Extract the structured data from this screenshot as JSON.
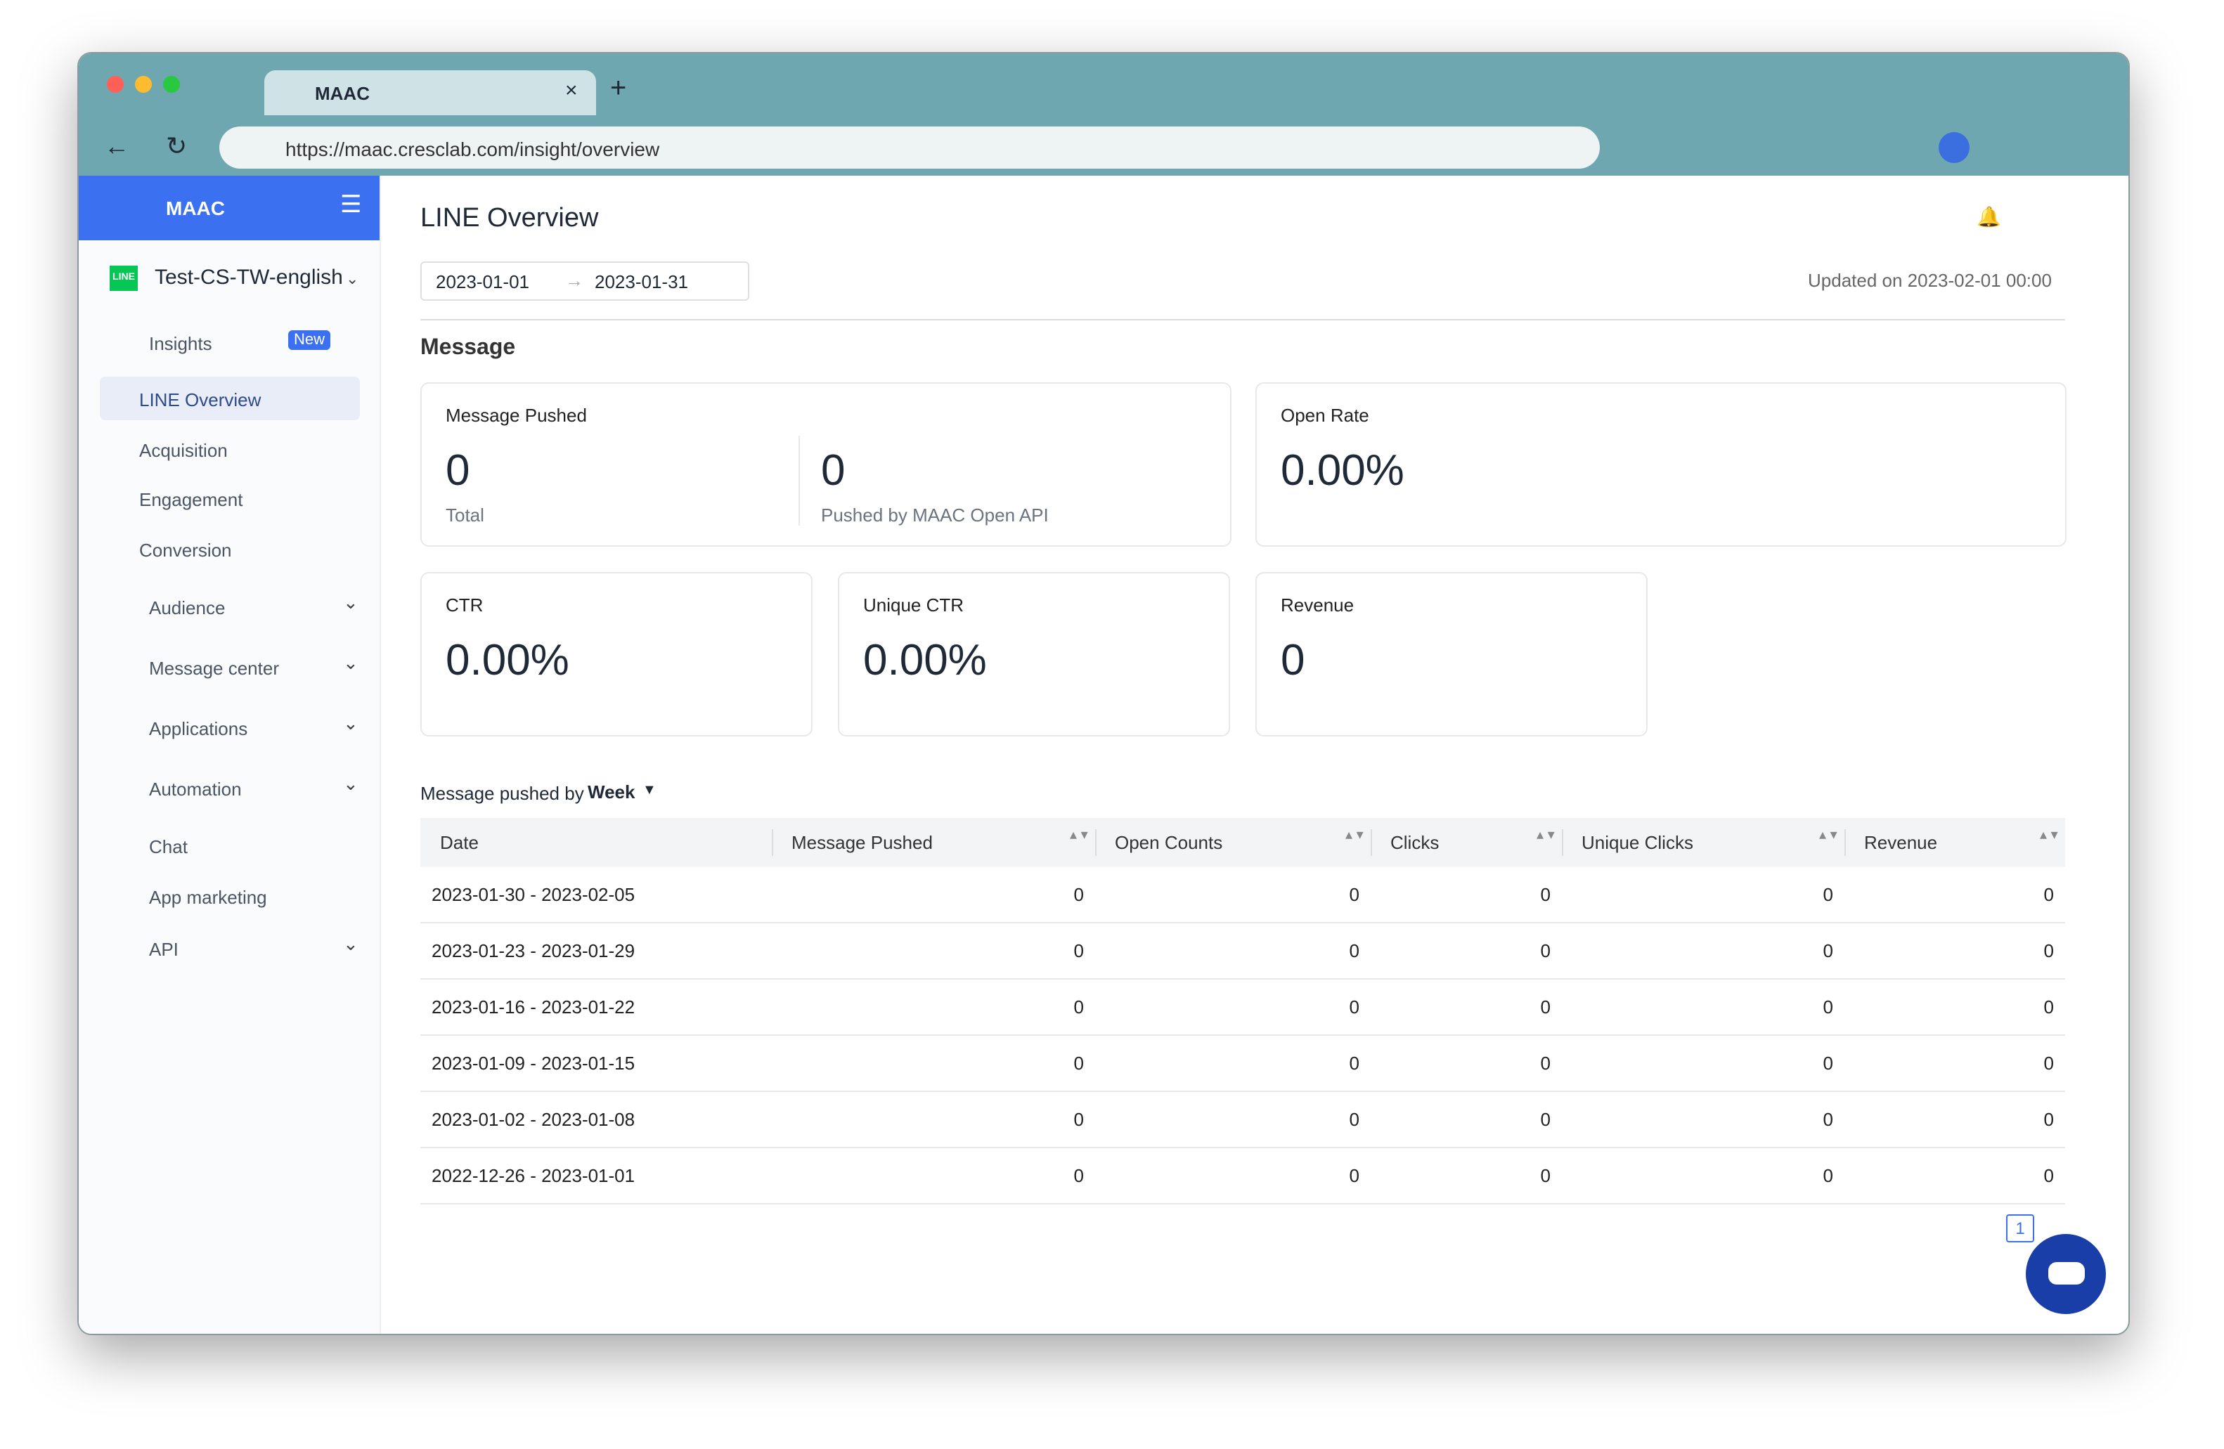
{
  "browser": {
    "tab_title": "MAAC",
    "url": "https://maac.cresclab.com/insight/overview"
  },
  "sidebar": {
    "brand": "MAAC",
    "account_badge": "LINE",
    "account": "Test-CS-TW-english",
    "insights": "Insights",
    "new_badge": "New",
    "subitems": [
      "LINE Overview",
      "Acquisition",
      "Engagement",
      "Conversion"
    ],
    "items": [
      "Audience",
      "Message center",
      "Applications",
      "Automation",
      "Chat",
      "App marketing",
      "API"
    ]
  },
  "header": {
    "title": "LINE Overview",
    "start_date": "2023-01-01",
    "end_date": "2023-01-31",
    "updated": "Updated on 2023-02-01 00:00"
  },
  "section": "Message",
  "cards": {
    "message_pushed": {
      "label": "Message Pushed",
      "total": "0",
      "total_label": "Total",
      "api": "0",
      "api_label": "Pushed by MAAC Open API"
    },
    "open_rate": {
      "label": "Open Rate",
      "value": "0.00%"
    },
    "ctr": {
      "label": "CTR",
      "value": "0.00%"
    },
    "unique_ctr": {
      "label": "Unique CTR",
      "value": "0.00%"
    },
    "revenue": {
      "label": "Revenue",
      "value": "0"
    }
  },
  "table": {
    "caption": "Message pushed by",
    "granularity": "Week",
    "columns": [
      "Date",
      "Message Pushed",
      "Open Counts",
      "Clicks",
      "Unique Clicks",
      "Revenue"
    ],
    "rows": [
      [
        "2023-01-30 - 2023-02-05",
        "0",
        "0",
        "0",
        "0",
        "0"
      ],
      [
        "2023-01-23 - 2023-01-29",
        "0",
        "0",
        "0",
        "0",
        "0"
      ],
      [
        "2023-01-16 - 2023-01-22",
        "0",
        "0",
        "0",
        "0",
        "0"
      ],
      [
        "2023-01-09 - 2023-01-15",
        "0",
        "0",
        "0",
        "0",
        "0"
      ],
      [
        "2023-01-02 - 2023-01-08",
        "0",
        "0",
        "0",
        "0",
        "0"
      ],
      [
        "2022-12-26 - 2023-01-01",
        "0",
        "0",
        "0",
        "0",
        "0"
      ]
    ]
  },
  "pagination": {
    "current": "1"
  }
}
